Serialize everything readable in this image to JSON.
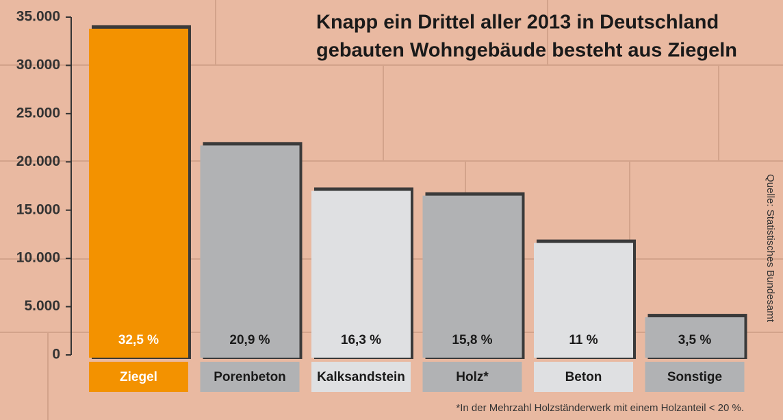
{
  "chart_data": {
    "type": "bar",
    "title_lines": [
      "Knapp ein Drittel aller 2013 in Deutschland",
      "gebauten Wohngebäude besteht aus Ziegeln"
    ],
    "categories": [
      "Ziegel",
      "Porenbeton",
      "Kalksandstein",
      "Holz*",
      "Beton",
      "Sonstige"
    ],
    "values": [
      33800,
      21700,
      17000,
      16500,
      11600,
      3900
    ],
    "share_labels": [
      "32,5 %",
      "20,9 %",
      "16,3 %",
      "15,8 %",
      "11 %",
      "3,5 %"
    ],
    "colors": [
      "#f39200",
      "#b1b2b4",
      "#dfe0e2",
      "#b1b2b4",
      "#dfe0e2",
      "#b1b2b4"
    ],
    "label_colors": [
      "#ffffff",
      "#1a1a1a",
      "#1a1a1a",
      "#1a1a1a",
      "#1a1a1a",
      "#1a1a1a"
    ],
    "ylim": [
      0,
      35000
    ],
    "yticks": [
      0,
      {
        "value": 5000,
        "label": "5.000"
      },
      {
        "value": 10000,
        "label": "10.000"
      },
      {
        "value": 15000,
        "label": "15.000"
      },
      {
        "value": 20000,
        "label": "20.000"
      },
      {
        "value": 25000,
        "label": "25.000"
      },
      {
        "value": 30000,
        "label": "30.000"
      },
      {
        "value": 35000,
        "label": "35.000"
      }
    ],
    "source": "Quelle: Statistisches Bundesamt",
    "footnote": "*In der Mehrzahl Holzständerwerk mit einem Holzanteil < 20 %."
  }
}
